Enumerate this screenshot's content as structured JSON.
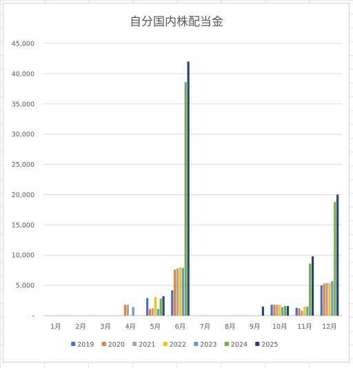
{
  "chart_data": {
    "type": "bar",
    "title": "自分国内株配当金",
    "xlabel": "",
    "ylabel": "",
    "categories": [
      "1月",
      "2月",
      "3月",
      "4月",
      "5月",
      "6月",
      "7月",
      "8月",
      "9月",
      "10月",
      "11月",
      "12月"
    ],
    "ylim": [
      0,
      45000
    ],
    "yticks": [
      0,
      5000,
      10000,
      15000,
      20000,
      25000,
      30000,
      35000,
      40000,
      45000
    ],
    "ytick_labels": [
      "-",
      "5,000",
      "10,000",
      "15,000",
      "20,000",
      "25,000",
      "30,000",
      "35,000",
      "40,000",
      "45,000"
    ],
    "grid": "horizontal",
    "legend_position": "bottom",
    "series": [
      {
        "name": "2019",
        "color": "#4472C4",
        "values": [
          0,
          0,
          0,
          0,
          2900,
          4200,
          0,
          0,
          0,
          1800,
          1300,
          5000
        ]
      },
      {
        "name": "2020",
        "color": "#ED7D31",
        "values": [
          0,
          0,
          0,
          1800,
          1100,
          7600,
          0,
          0,
          0,
          1800,
          1200,
          5300
        ]
      },
      {
        "name": "2021",
        "color": "#A5A5A5",
        "values": [
          0,
          0,
          0,
          1800,
          1200,
          7800,
          0,
          0,
          0,
          1800,
          800,
          5400
        ]
      },
      {
        "name": "2022",
        "color": "#FFC000",
        "values": [
          0,
          0,
          0,
          0,
          3100,
          8000,
          0,
          0,
          0,
          1800,
          1500,
          5400
        ]
      },
      {
        "name": "2023",
        "color": "#5B9BD5",
        "values": [
          0,
          0,
          0,
          1400,
          1100,
          7900,
          0,
          0,
          0,
          1400,
          1500,
          5700
        ]
      },
      {
        "name": "2024",
        "color": "#70AD47",
        "values": [
          0,
          0,
          0,
          0,
          2800,
          38600,
          0,
          0,
          0,
          1600,
          8600,
          18800
        ]
      },
      {
        "name": "2025",
        "color": "#264478",
        "values": [
          0,
          0,
          0,
          0,
          3200,
          42000,
          0,
          0,
          1500,
          1600,
          9800,
          20000
        ]
      }
    ]
  }
}
